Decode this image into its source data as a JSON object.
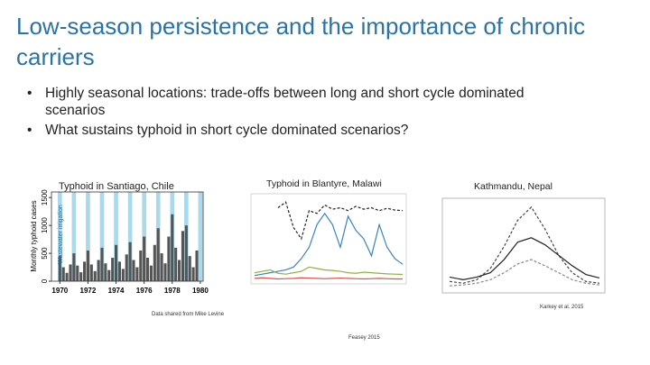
{
  "title": "Low-season persistence and the importance of chronic carriers",
  "bullets": [
    "Highly seasonal locations: trade-offs between long and short cycle dominated scenarios",
    "What sustains typhoid in short cycle dominated scenarios?"
  ],
  "panels": [
    {
      "caption": "Typhoid in Santiago, Chile",
      "credit": "Data shared from Mike Levine",
      "chart_data": {
        "type": "bar",
        "ylabel": "Monthly typhoid cases",
        "annotation": "Wastewater irrigation",
        "color": "#555555",
        "stripe_color": "#a9d9ea",
        "x": [
          1970,
          1970.25,
          1970.5,
          1970.75,
          1971,
          1971.25,
          1971.5,
          1971.75,
          1972,
          1972.25,
          1972.5,
          1972.75,
          1973,
          1973.25,
          1973.5,
          1973.75,
          1974,
          1974.25,
          1974.5,
          1974.75,
          1975,
          1975.25,
          1975.5,
          1975.75,
          1976,
          1976.25,
          1976.5,
          1976.75,
          1977,
          1977.25,
          1977.5,
          1977.75,
          1978,
          1978.25,
          1978.5,
          1978.75,
          1979,
          1979.25,
          1979.5,
          1979.75
        ],
        "values": [
          450,
          250,
          150,
          300,
          500,
          280,
          160,
          350,
          550,
          300,
          180,
          380,
          600,
          320,
          200,
          420,
          650,
          350,
          220,
          480,
          700,
          380,
          250,
          550,
          800,
          420,
          280,
          650,
          950,
          500,
          320,
          800,
          1200,
          600,
          380,
          900,
          1000,
          450,
          250,
          550
        ],
        "xlim": [
          1969.4,
          1980.2
        ],
        "ylim": [
          0,
          1600
        ],
        "xticks": [
          1970,
          1972,
          1974,
          1976,
          1978,
          1980
        ],
        "yticks": [
          0,
          500,
          1000,
          1500
        ]
      }
    },
    {
      "caption": "Typhoid in Blantyre, Malawi",
      "credit": "Feasey 2015",
      "chart_data": {
        "type": "line",
        "ylim": [
          0,
          300
        ],
        "series": [
          {
            "color": "#222222",
            "dash": true,
            "values": [
              null,
              null,
              null,
              260,
              280,
              190,
              150,
              250,
              240,
              270,
              255,
              260,
              250,
              265,
              255,
              260,
              250,
              258,
              252,
              250
            ]
          },
          {
            "color": "#3b82c4",
            "values": [
              20,
              25,
              30,
              35,
              40,
              50,
              80,
              120,
              200,
              240,
              200,
              120,
              230,
              180,
              150,
              90,
              200,
              120,
              80,
              60
            ]
          },
          {
            "color": "#8db33f",
            "values": [
              30,
              35,
              40,
              28,
              25,
              30,
              35,
              50,
              45,
              40,
              38,
              35,
              30,
              28,
              32,
              30,
              28,
              26,
              25,
              24
            ]
          },
          {
            "color": "#d9534f",
            "values": [
              10,
              12,
              10,
              8,
              9,
              10,
              12,
              11,
              10,
              9,
              10,
              11,
              10,
              9,
              8,
              9,
              10,
              9,
              8,
              8
            ]
          }
        ]
      }
    },
    {
      "caption": "Kathmandu, Nepal",
      "credit": "Karkey et al. 2015",
      "chart_data": {
        "type": "line",
        "ylim": [
          0,
          100
        ],
        "series": [
          {
            "color": "#444444",
            "dash": true,
            "values": [
              10,
              8,
              12,
              25,
              50,
              80,
              95,
              70,
              40,
              20,
              10,
              8
            ]
          },
          {
            "color": "#222222",
            "values": [
              15,
              12,
              15,
              20,
              35,
              55,
              60,
              52,
              40,
              28,
              18,
              14
            ]
          },
          {
            "color": "#888888",
            "dash": true,
            "values": [
              5,
              6,
              8,
              12,
              20,
              30,
              35,
              28,
              20,
              12,
              8,
              6
            ]
          }
        ]
      }
    }
  ]
}
